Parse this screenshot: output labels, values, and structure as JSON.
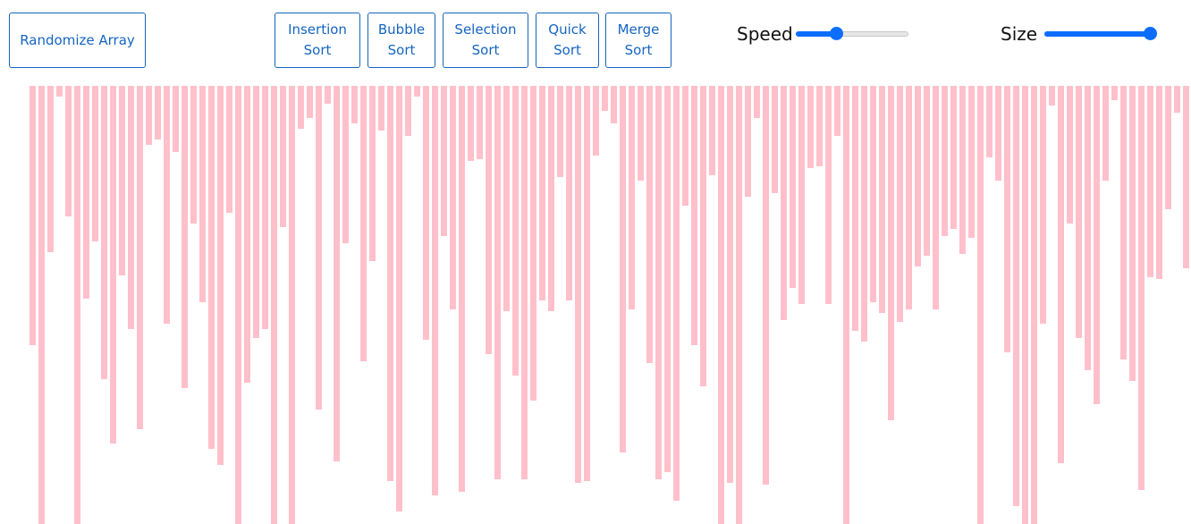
{
  "toolbar": {
    "randomize_label": "Randomize Array",
    "insertion_label_1": "Insertion",
    "insertion_label_2": "Sort",
    "bubble_label_1": "Bubble",
    "bubble_label_2": "Sort",
    "selection_label_1": "Selection",
    "selection_label_2": "Sort",
    "quick_label_1": "Quick",
    "quick_label_2": "Sort",
    "merge_label_1": "Merge",
    "merge_label_2": "Sort",
    "speed_label": "Speed",
    "size_label": "Size",
    "speed_fraction": 0.35,
    "size_fraction": 1.0
  },
  "array": {
    "bar_color": "#ffc0cb",
    "values": [
      290,
      490,
      186,
      12,
      146,
      490,
      238,
      174,
      328,
      400,
      212,
      272,
      384,
      66,
      60,
      266,
      74,
      338,
      154,
      242,
      406,
      424,
      142,
      490,
      332,
      282,
      272,
      490,
      158,
      490,
      48,
      36,
      362,
      20,
      420,
      176,
      42,
      308,
      196,
      50,
      442,
      476,
      56,
      12,
      284,
      458,
      168,
      250,
      454,
      84,
      82,
      300,
      440,
      252,
      324,
      440,
      352,
      240,
      252,
      102,
      240,
      444,
      442,
      78,
      28,
      42,
      410,
      250,
      106,
      310,
      440,
      432,
      464,
      134,
      290,
      336,
      100,
      490,
      444,
      490,
      124,
      36,
      446,
      120,
      262,
      226,
      244,
      92,
      90,
      244,
      56,
      490,
      274,
      286,
      242,
      254,
      374,
      264,
      250,
      202,
      190,
      250,
      168,
      160,
      188,
      170,
      490,
      80,
      106,
      298,
      470,
      490,
      490,
      266,
      22,
      422,
      154,
      282,
      318,
      356,
      106,
      16,
      306,
      330,
      452,
      214,
      216,
      138,
      30,
      204,
      250,
      144
    ]
  }
}
